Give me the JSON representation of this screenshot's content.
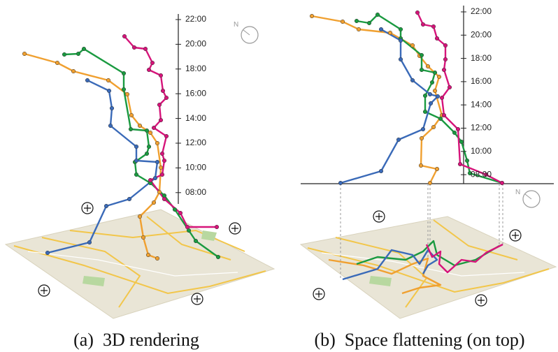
{
  "figure": {
    "panels": [
      {
        "caption": "(a)  3D rendering",
        "compass": "N",
        "time_labels": [
          "22:00",
          "20:00",
          "18:00",
          "16:00",
          "14:00",
          "12:00",
          "10:00",
          "08:00"
        ]
      },
      {
        "caption": "(b)  Space flattening (on top)",
        "compass": "N",
        "time_labels": [
          "22:00",
          "20:00",
          "18:00",
          "16:00",
          "14:00",
          "12:00",
          "10:00",
          "08:00"
        ]
      }
    ]
  }
}
